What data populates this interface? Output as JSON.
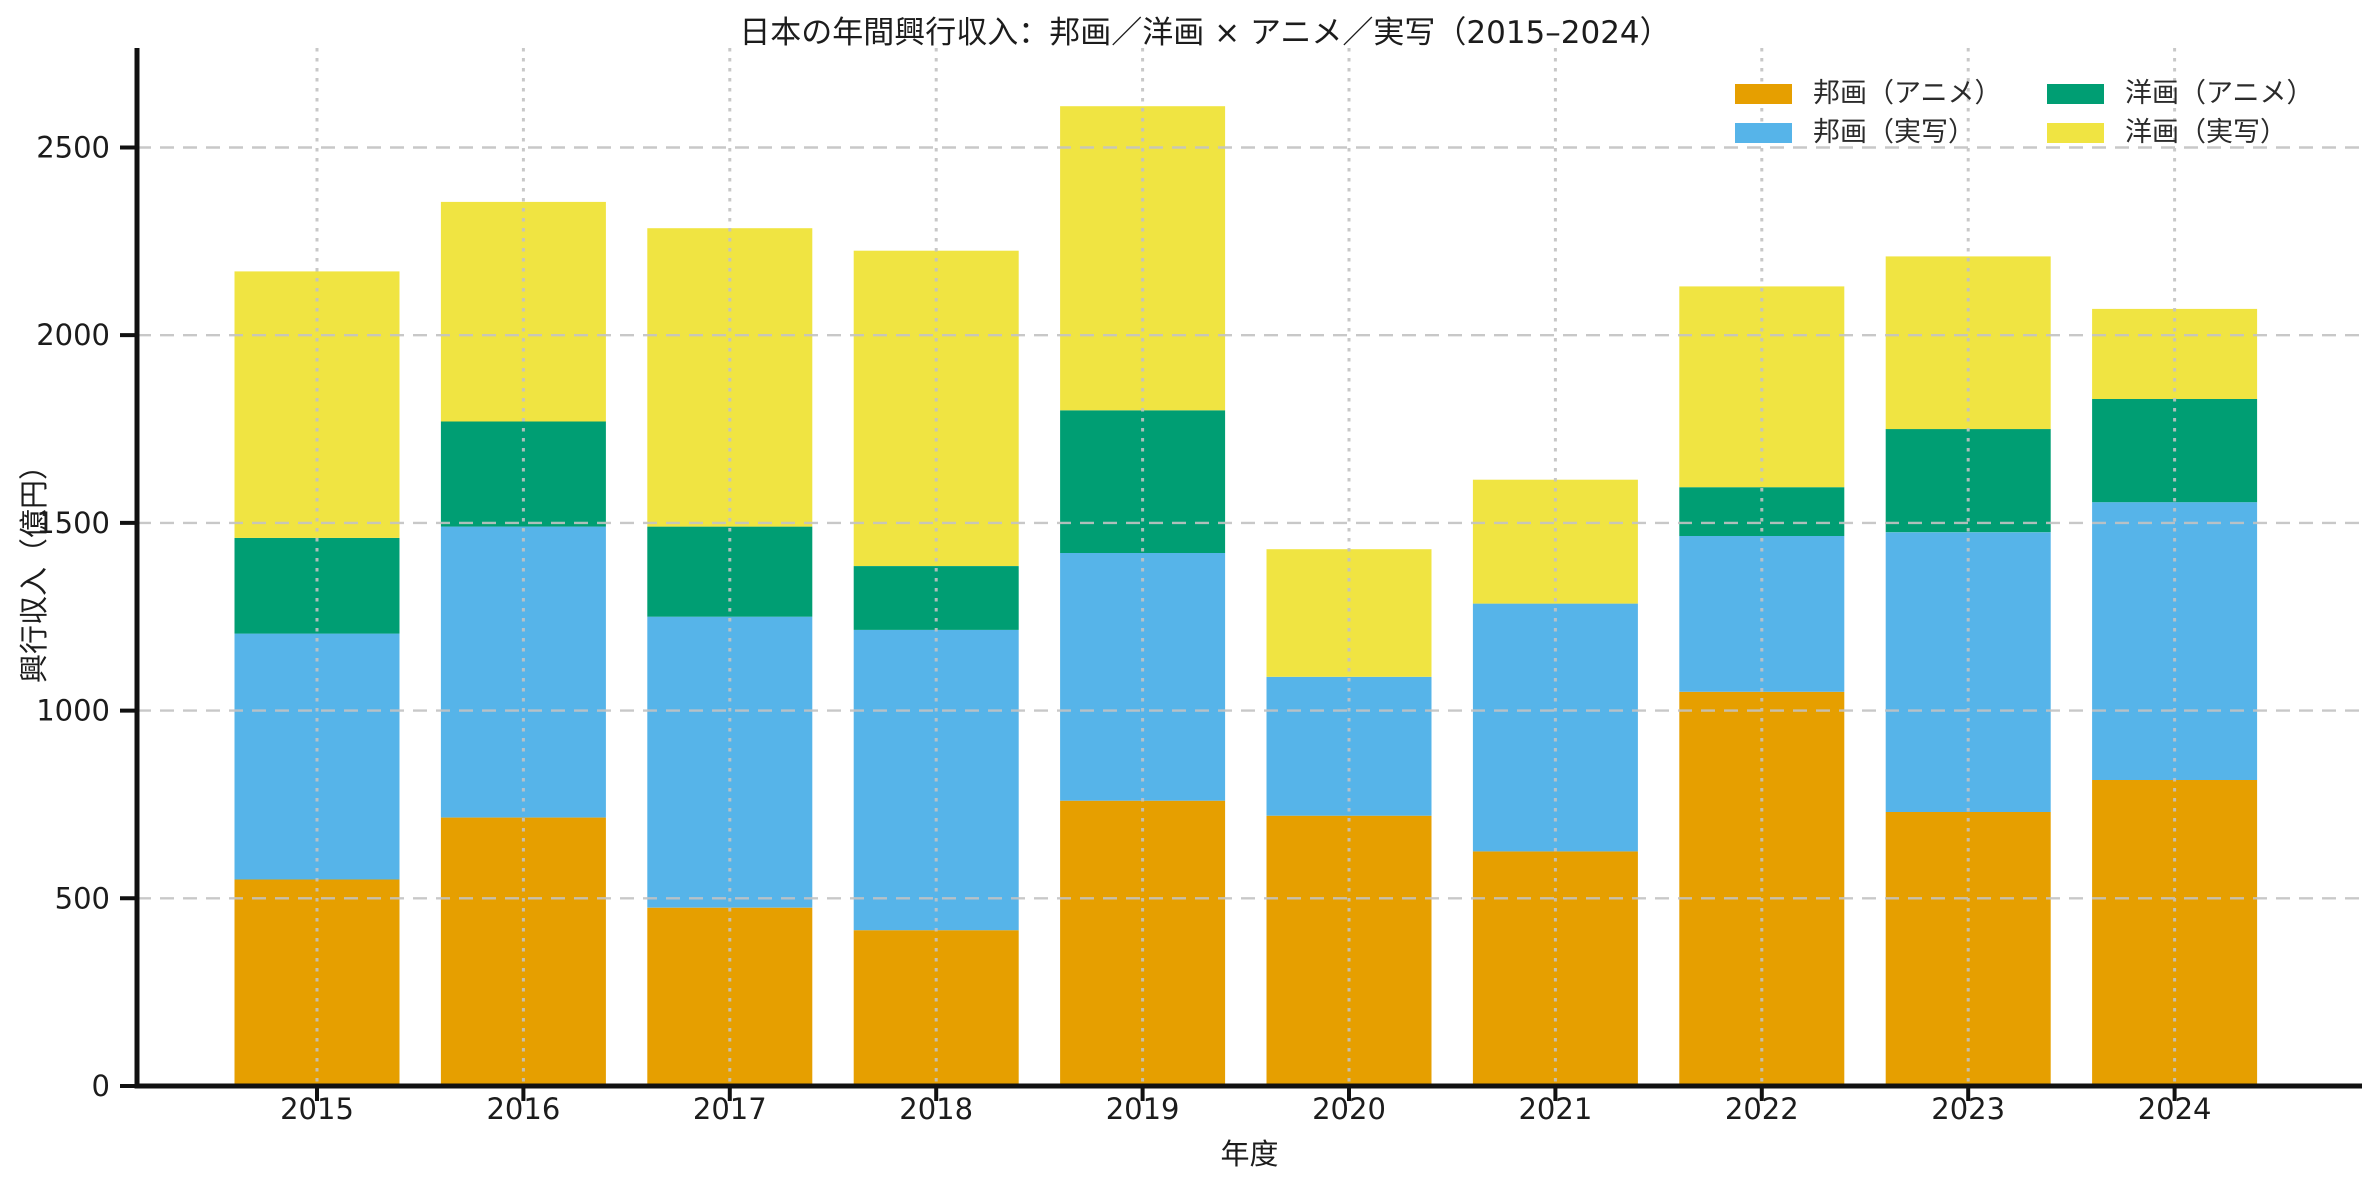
{
  "chart_data": {
    "type": "bar",
    "stacked": true,
    "title": "日本の年間興行収入：邦画／洋画 × アニメ／実写（2015–2024）",
    "xlabel": "年度",
    "ylabel": "興行収入（億円）",
    "categories": [
      "2015",
      "2016",
      "2017",
      "2018",
      "2019",
      "2020",
      "2021",
      "2022",
      "2023",
      "2024"
    ],
    "series": [
      {
        "name": "邦画（アニメ）",
        "color": "#E69F00",
        "values": [
          550,
          715,
          475,
          415,
          760,
          720,
          625,
          1050,
          730,
          815
        ]
      },
      {
        "name": "邦画（実写）",
        "color": "#56B4E9",
        "values": [
          655,
          775,
          775,
          800,
          660,
          370,
          660,
          415,
          745,
          740
        ]
      },
      {
        "name": "洋画（アニメ）",
        "color": "#009E73",
        "values": [
          255,
          280,
          240,
          170,
          380,
          0,
          0,
          130,
          275,
          275
        ]
      },
      {
        "name": "洋画（実写）",
        "color": "#F0E442",
        "values": [
          710,
          585,
          795,
          840,
          810,
          340,
          330,
          535,
          460,
          240
        ]
      }
    ],
    "totals": [
      2170,
      2355,
      2285,
      2225,
      2610,
      1430,
      1615,
      2130,
      2210,
      2070
    ],
    "ylim": [
      0,
      2765
    ],
    "yticks": [
      0,
      500,
      1000,
      1500,
      2000,
      2500
    ],
    "grid": true,
    "legend_position": "upper-right",
    "axis_color": "#111111",
    "grid_color": "#c3c3c3",
    "text_color": "#1c1c1c"
  }
}
